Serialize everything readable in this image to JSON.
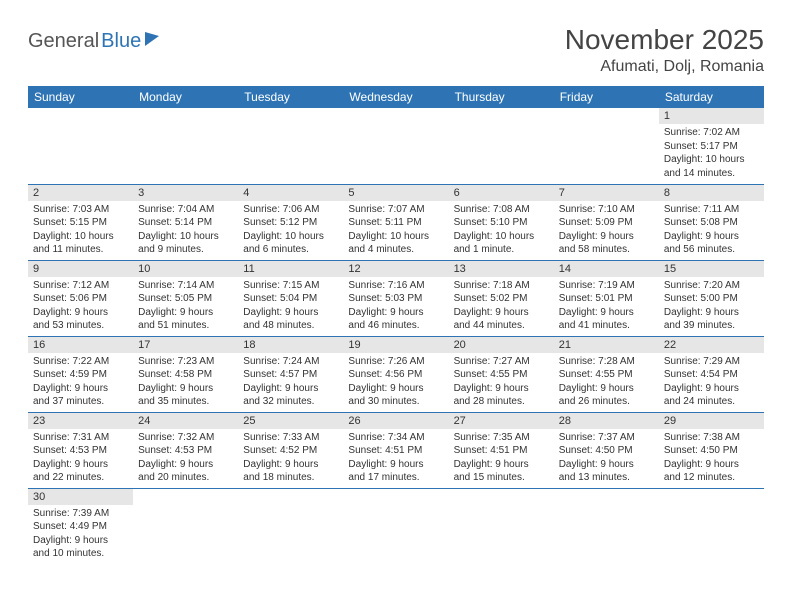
{
  "logo": {
    "part1": "General",
    "part2": "Blue"
  },
  "title": "November 2025",
  "location": "Afumati, Dolj, Romania",
  "colors": {
    "header_bg": "#2e74b5",
    "header_fg": "#ffffff",
    "daynum_bg": "#e6e6e6",
    "border": "#2e74b5",
    "page_bg": "#ffffff",
    "text": "#333333"
  },
  "daysOfWeek": [
    "Sunday",
    "Monday",
    "Tuesday",
    "Wednesday",
    "Thursday",
    "Friday",
    "Saturday"
  ],
  "weeks": [
    [
      null,
      null,
      null,
      null,
      null,
      null,
      {
        "n": "1",
        "sr": "Sunrise: 7:02 AM",
        "ss": "Sunset: 5:17 PM",
        "d1": "Daylight: 10 hours",
        "d2": "and 14 minutes."
      }
    ],
    [
      {
        "n": "2",
        "sr": "Sunrise: 7:03 AM",
        "ss": "Sunset: 5:15 PM",
        "d1": "Daylight: 10 hours",
        "d2": "and 11 minutes."
      },
      {
        "n": "3",
        "sr": "Sunrise: 7:04 AM",
        "ss": "Sunset: 5:14 PM",
        "d1": "Daylight: 10 hours",
        "d2": "and 9 minutes."
      },
      {
        "n": "4",
        "sr": "Sunrise: 7:06 AM",
        "ss": "Sunset: 5:12 PM",
        "d1": "Daylight: 10 hours",
        "d2": "and 6 minutes."
      },
      {
        "n": "5",
        "sr": "Sunrise: 7:07 AM",
        "ss": "Sunset: 5:11 PM",
        "d1": "Daylight: 10 hours",
        "d2": "and 4 minutes."
      },
      {
        "n": "6",
        "sr": "Sunrise: 7:08 AM",
        "ss": "Sunset: 5:10 PM",
        "d1": "Daylight: 10 hours",
        "d2": "and 1 minute."
      },
      {
        "n": "7",
        "sr": "Sunrise: 7:10 AM",
        "ss": "Sunset: 5:09 PM",
        "d1": "Daylight: 9 hours",
        "d2": "and 58 minutes."
      },
      {
        "n": "8",
        "sr": "Sunrise: 7:11 AM",
        "ss": "Sunset: 5:08 PM",
        "d1": "Daylight: 9 hours",
        "d2": "and 56 minutes."
      }
    ],
    [
      {
        "n": "9",
        "sr": "Sunrise: 7:12 AM",
        "ss": "Sunset: 5:06 PM",
        "d1": "Daylight: 9 hours",
        "d2": "and 53 minutes."
      },
      {
        "n": "10",
        "sr": "Sunrise: 7:14 AM",
        "ss": "Sunset: 5:05 PM",
        "d1": "Daylight: 9 hours",
        "d2": "and 51 minutes."
      },
      {
        "n": "11",
        "sr": "Sunrise: 7:15 AM",
        "ss": "Sunset: 5:04 PM",
        "d1": "Daylight: 9 hours",
        "d2": "and 48 minutes."
      },
      {
        "n": "12",
        "sr": "Sunrise: 7:16 AM",
        "ss": "Sunset: 5:03 PM",
        "d1": "Daylight: 9 hours",
        "d2": "and 46 minutes."
      },
      {
        "n": "13",
        "sr": "Sunrise: 7:18 AM",
        "ss": "Sunset: 5:02 PM",
        "d1": "Daylight: 9 hours",
        "d2": "and 44 minutes."
      },
      {
        "n": "14",
        "sr": "Sunrise: 7:19 AM",
        "ss": "Sunset: 5:01 PM",
        "d1": "Daylight: 9 hours",
        "d2": "and 41 minutes."
      },
      {
        "n": "15",
        "sr": "Sunrise: 7:20 AM",
        "ss": "Sunset: 5:00 PM",
        "d1": "Daylight: 9 hours",
        "d2": "and 39 minutes."
      }
    ],
    [
      {
        "n": "16",
        "sr": "Sunrise: 7:22 AM",
        "ss": "Sunset: 4:59 PM",
        "d1": "Daylight: 9 hours",
        "d2": "and 37 minutes."
      },
      {
        "n": "17",
        "sr": "Sunrise: 7:23 AM",
        "ss": "Sunset: 4:58 PM",
        "d1": "Daylight: 9 hours",
        "d2": "and 35 minutes."
      },
      {
        "n": "18",
        "sr": "Sunrise: 7:24 AM",
        "ss": "Sunset: 4:57 PM",
        "d1": "Daylight: 9 hours",
        "d2": "and 32 minutes."
      },
      {
        "n": "19",
        "sr": "Sunrise: 7:26 AM",
        "ss": "Sunset: 4:56 PM",
        "d1": "Daylight: 9 hours",
        "d2": "and 30 minutes."
      },
      {
        "n": "20",
        "sr": "Sunrise: 7:27 AM",
        "ss": "Sunset: 4:55 PM",
        "d1": "Daylight: 9 hours",
        "d2": "and 28 minutes."
      },
      {
        "n": "21",
        "sr": "Sunrise: 7:28 AM",
        "ss": "Sunset: 4:55 PM",
        "d1": "Daylight: 9 hours",
        "d2": "and 26 minutes."
      },
      {
        "n": "22",
        "sr": "Sunrise: 7:29 AM",
        "ss": "Sunset: 4:54 PM",
        "d1": "Daylight: 9 hours",
        "d2": "and 24 minutes."
      }
    ],
    [
      {
        "n": "23",
        "sr": "Sunrise: 7:31 AM",
        "ss": "Sunset: 4:53 PM",
        "d1": "Daylight: 9 hours",
        "d2": "and 22 minutes."
      },
      {
        "n": "24",
        "sr": "Sunrise: 7:32 AM",
        "ss": "Sunset: 4:53 PM",
        "d1": "Daylight: 9 hours",
        "d2": "and 20 minutes."
      },
      {
        "n": "25",
        "sr": "Sunrise: 7:33 AM",
        "ss": "Sunset: 4:52 PM",
        "d1": "Daylight: 9 hours",
        "d2": "and 18 minutes."
      },
      {
        "n": "26",
        "sr": "Sunrise: 7:34 AM",
        "ss": "Sunset: 4:51 PM",
        "d1": "Daylight: 9 hours",
        "d2": "and 17 minutes."
      },
      {
        "n": "27",
        "sr": "Sunrise: 7:35 AM",
        "ss": "Sunset: 4:51 PM",
        "d1": "Daylight: 9 hours",
        "d2": "and 15 minutes."
      },
      {
        "n": "28",
        "sr": "Sunrise: 7:37 AM",
        "ss": "Sunset: 4:50 PM",
        "d1": "Daylight: 9 hours",
        "d2": "and 13 minutes."
      },
      {
        "n": "29",
        "sr": "Sunrise: 7:38 AM",
        "ss": "Sunset: 4:50 PM",
        "d1": "Daylight: 9 hours",
        "d2": "and 12 minutes."
      }
    ],
    [
      {
        "n": "30",
        "sr": "Sunrise: 7:39 AM",
        "ss": "Sunset: 4:49 PM",
        "d1": "Daylight: 9 hours",
        "d2": "and 10 minutes."
      },
      null,
      null,
      null,
      null,
      null,
      null
    ]
  ]
}
